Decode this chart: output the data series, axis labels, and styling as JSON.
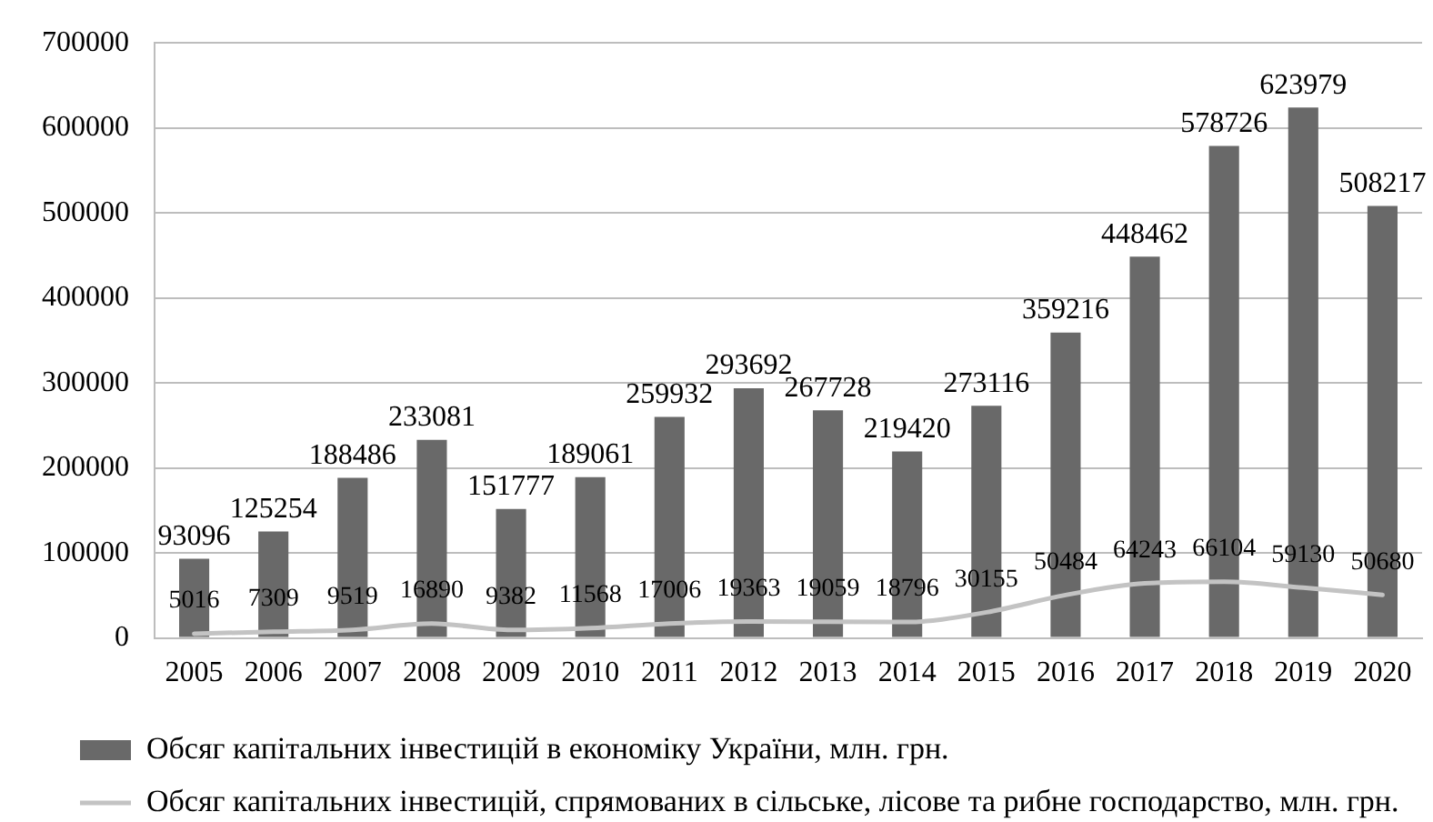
{
  "chart_data": {
    "type": "bar",
    "categories": [
      "2005",
      "2006",
      "2007",
      "2008",
      "2009",
      "2010",
      "2011",
      "2012",
      "2013",
      "2014",
      "2015",
      "2016",
      "2017",
      "2018",
      "2019",
      "2020"
    ],
    "series": [
      {
        "name": "Обсяг капітальних інвестицій в економіку України, млн. грн.",
        "color": "#696969",
        "values": [
          93096,
          125254,
          188486,
          233081,
          151777,
          189061,
          259932,
          293692,
          267728,
          219420,
          273116,
          359216,
          448462,
          578726,
          623979,
          508217
        ]
      },
      {
        "name": "Обсяг капітальних інвестицій, спрямованих в сільське, лісове та рибне господарство, млн. грн.",
        "type": "line",
        "color": "#c3c3c3",
        "marker": "none",
        "values": [
          5016,
          7309,
          9519,
          16890,
          9382,
          11568,
          17006,
          19363,
          19059,
          18796,
          30155,
          50484,
          64243,
          66104,
          59130,
          50680
        ]
      }
    ],
    "ylim": [
      0,
      700000
    ],
    "yticks": [
      0,
      100000,
      200000,
      300000,
      400000,
      500000,
      600000,
      700000
    ],
    "grid": "y",
    "legend": "bottom left",
    "data_labels": true
  }
}
